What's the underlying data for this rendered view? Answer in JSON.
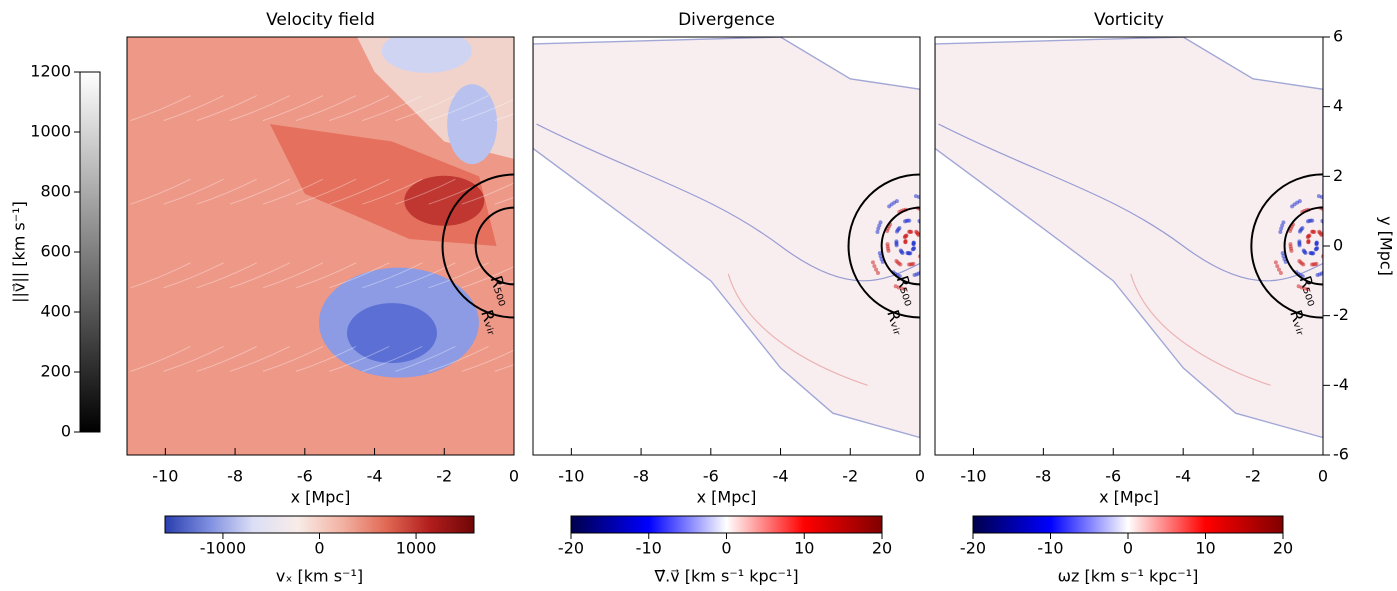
{
  "chart_data": [
    {
      "type": "image",
      "title": "Velocity field",
      "xlabel": "x [Mpc]",
      "xlim": [
        -11.1,
        0
      ],
      "xticks": [
        -10,
        -8,
        -6,
        -4,
        -2,
        0
      ],
      "ylim": [
        -6,
        6
      ],
      "annotations": [
        {
          "label": "R₅₀₀",
          "radius": 1.1
        },
        {
          "label": "Rᵥᵢᵣ",
          "radius": 2.05
        }
      ],
      "colorbar": {
        "label": "vₓ [km s⁻¹]",
        "lim": [
          -1600,
          1600
        ],
        "ticks": [
          -1000,
          0,
          1000
        ],
        "colors": [
          "#2a3fb0",
          "#7e8ee0",
          "#dcdff5",
          "#f8ece8",
          "#f2b3a3",
          "#e16a55",
          "#b21d1d",
          "#6e0606"
        ]
      },
      "magnitude_colorbar": {
        "label": "||v⃗|| [km s⁻¹]",
        "lim": [
          0,
          1200
        ],
        "ticks": [
          0,
          200,
          400,
          600,
          800,
          1000,
          1200
        ],
        "colors": [
          "#000000",
          "#ffffff"
        ]
      }
    },
    {
      "type": "image",
      "title": "Divergence",
      "xlabel": "x [Mpc]",
      "xlim": [
        -11.1,
        0
      ],
      "xticks": [
        -10,
        -8,
        -6,
        -4,
        -2,
        0
      ],
      "ylim": [
        -6,
        6
      ],
      "annotations": [
        {
          "label": "R₅₀₀",
          "radius": 1.1
        },
        {
          "label": "Rᵥᵢᵣ",
          "radius": 2.05
        }
      ],
      "colorbar": {
        "label": "∇⃗.v⃗ [km s⁻¹ kpc⁻¹]",
        "lim": [
          -20,
          20
        ],
        "ticks": [
          -20,
          -10,
          0,
          10,
          20
        ],
        "colors": [
          "#00004c",
          "#0000ff",
          "#ffffff",
          "#ff0000",
          "#800000"
        ]
      }
    },
    {
      "type": "image",
      "title": "Vorticity",
      "xlabel": "x [Mpc]",
      "ylabel": "y [Mpc]",
      "xlim": [
        -11.1,
        0
      ],
      "xticks": [
        -10,
        -8,
        -6,
        -4,
        -2,
        0
      ],
      "ylim": [
        -6,
        6
      ],
      "yticks": [
        -6,
        -4,
        -2,
        0,
        2,
        4,
        6
      ],
      "annotations": [
        {
          "label": "R₅₀₀",
          "radius": 1.1
        },
        {
          "label": "Rᵥᵢᵣ",
          "radius": 2.05
        }
      ],
      "colorbar": {
        "label": "ωz [km s⁻¹ kpc⁻¹]",
        "lim": [
          -20,
          20
        ],
        "ticks": [
          -20,
          -10,
          0,
          10,
          20
        ],
        "colors": [
          "#00004c",
          "#0000ff",
          "#ffffff",
          "#ff0000",
          "#800000"
        ]
      }
    }
  ]
}
